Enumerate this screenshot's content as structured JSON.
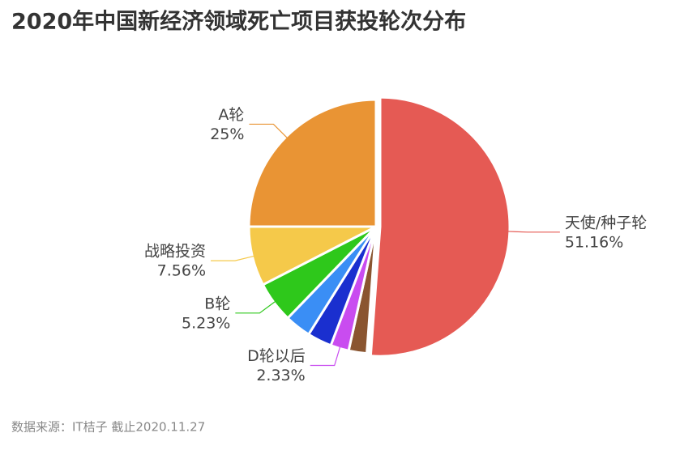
{
  "chart_data": {
    "type": "pie",
    "title": "2020年中国新经济领域死亡项目获投轮次分布",
    "categories": [
      "天使/种子轮",
      null,
      "D轮以后",
      null,
      null,
      "B轮",
      "战略投资",
      "A轮"
    ],
    "values": [
      51.16,
      2.3,
      2.33,
      3.1,
      3.32,
      5.23,
      7.56,
      25
    ],
    "value_labels": [
      "51.16%",
      null,
      "2.33%",
      null,
      null,
      "5.23%",
      "7.56%",
      "25%"
    ],
    "colors": [
      "#e55a54",
      "#8a5530",
      "#c94cf0",
      "#1a2fcf",
      "#3a8ef5",
      "#2ec81b",
      "#f5c94a",
      "#e99434"
    ],
    "source": "数据来源：IT桔子 截止2020.11.27"
  }
}
